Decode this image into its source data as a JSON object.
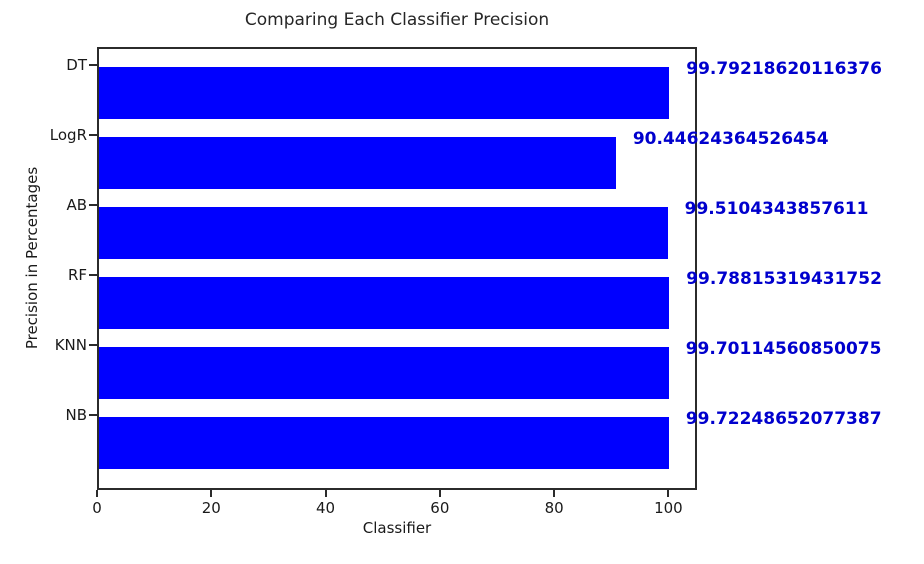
{
  "chart_data": {
    "type": "bar",
    "orientation": "horizontal",
    "title": "Comparing Each Classifier Precision",
    "xlabel": "Classifier",
    "ylabel": "Precision in Percentages",
    "categories": [
      "DT",
      "LogR",
      "AB",
      "RF",
      "KNN",
      "NB"
    ],
    "values": [
      99.79218620116376,
      90.44624364526454,
      99.5104343857611,
      99.78815319431752,
      99.70114560850075,
      99.72248652077387
    ],
    "value_labels": [
      "99.79218620116376",
      "90.44624364526454",
      "99.5104343857611",
      "99.78815319431752",
      "99.70114560850075",
      "99.72248652077387"
    ],
    "xticks": [
      0,
      20,
      40,
      60,
      80,
      100
    ],
    "xlim": [
      0,
      105
    ],
    "grid": false,
    "legend": null,
    "colors": {
      "bar": "#0000ff",
      "value_label": "#0000cd",
      "axis": "#2b2b2b",
      "text": "#1a1a1a"
    }
  }
}
